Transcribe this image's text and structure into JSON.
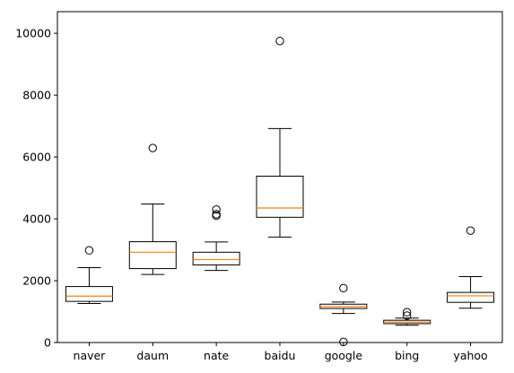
{
  "chart_data": {
    "type": "box",
    "title": "",
    "xlabel": "",
    "ylabel": "",
    "categories": [
      "naver",
      "daum",
      "nate",
      "baidu",
      "google",
      "bing",
      "yahoo"
    ],
    "ylim": [
      0,
      10700
    ],
    "yticks": [
      0,
      2000,
      4000,
      6000,
      8000,
      10000
    ],
    "ytick_labels": [
      "0",
      "2000",
      "4000",
      "6000",
      "8000",
      "10000"
    ],
    "grid": false,
    "boxes": [
      {
        "category": "naver",
        "whisker_low": 1260,
        "q1": 1330,
        "median": 1500,
        "q3": 1810,
        "whisker_high": 2420,
        "fliers": [
          2980
        ]
      },
      {
        "category": "daum",
        "whisker_low": 2200,
        "q1": 2390,
        "median": 2920,
        "q3": 3260,
        "whisker_high": 4480,
        "fliers": [
          6290
        ]
      },
      {
        "category": "nate",
        "whisker_low": 2330,
        "q1": 2510,
        "median": 2680,
        "q3": 2920,
        "whisker_high": 3250,
        "fliers": [
          4100,
          4150,
          4300
        ]
      },
      {
        "category": "baidu",
        "whisker_low": 3410,
        "q1": 4050,
        "median": 4350,
        "q3": 5380,
        "whisker_high": 6920,
        "fliers": [
          9750
        ]
      },
      {
        "category": "google",
        "whisker_low": 940,
        "q1": 1100,
        "median": 1160,
        "q3": 1240,
        "whisker_high": 1310,
        "fliers": [
          1760,
          20
        ]
      },
      {
        "category": "bing",
        "whisker_low": 560,
        "q1": 610,
        "median": 660,
        "q3": 720,
        "whisker_high": 790,
        "fliers": [
          870,
          980
        ]
      },
      {
        "category": "yahoo",
        "whisker_low": 1110,
        "q1": 1300,
        "median": 1510,
        "q3": 1620,
        "whisker_high": 2130,
        "fliers": [
          3620
        ]
      }
    ]
  },
  "style": {
    "box_color": "#000000",
    "median_color": "#ff7f0e",
    "flier_color": "#000000"
  }
}
